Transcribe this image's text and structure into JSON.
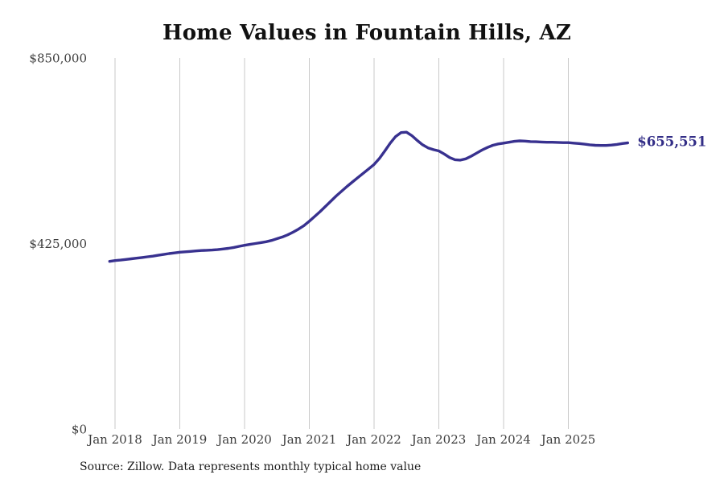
{
  "title": "Home Values in Fountain Hills, AZ",
  "source_note": "Source: Zillow. Data represents monthly typical home value",
  "latest_value_label": "$655,551",
  "colors": {
    "line": "#38318f",
    "grid": "#c9c9c9",
    "axis_text": "#3d3d3d",
    "title_text": "#111111",
    "end_label_text": "#332e87",
    "background": "#ffffff"
  },
  "chart_data": {
    "type": "line",
    "title": "Home Values in Fountain Hills, AZ",
    "xlabel": "",
    "ylabel": "",
    "x_start_month": "Dec 2017",
    "x_end_month": "Dec 2025",
    "x_offset_months": -1,
    "x_tick_labels": [
      "Jan 2018",
      "Jan 2019",
      "Jan 2020",
      "Jan 2021",
      "Jan 2022",
      "Jan 2023",
      "Jan 2024",
      "Jan 2025"
    ],
    "y_ticks": [
      0,
      425000,
      850000
    ],
    "y_tick_labels": [
      "$0",
      "$425,000",
      "$850,000"
    ],
    "ylim": [
      0,
      850000
    ],
    "grid": "vertical-only",
    "legend": "none",
    "end_value": 655551,
    "series": [
      {
        "name": "Typical home value",
        "values": [
          384000,
          386000,
          387000,
          388500,
          390000,
          391500,
          393000,
          394500,
          396000,
          398000,
          400000,
          402000,
          403500,
          405000,
          406000,
          407000,
          408000,
          409000,
          409500,
          410000,
          411000,
          412500,
          414000,
          416000,
          418500,
          421000,
          423000,
          425000,
          427000,
          429000,
          432000,
          436000,
          440000,
          445000,
          451000,
          458000,
          466000,
          476000,
          487000,
          498000,
          510000,
          522000,
          534000,
          545000,
          556000,
          566000,
          576000,
          586000,
          596000,
          606000,
          620000,
          637000,
          655000,
          670000,
          679000,
          680000,
          672000,
          661000,
          651000,
          644000,
          640000,
          637000,
          630000,
          622000,
          617000,
          616000,
          619000,
          625000,
          632000,
          639000,
          645000,
          650000,
          653000,
          655000,
          657000,
          659000,
          660000,
          659500,
          658500,
          658000,
          657500,
          657000,
          657000,
          656500,
          656000,
          656000,
          655000,
          654000,
          652500,
          651000,
          650000,
          649500,
          649500,
          650500,
          652000,
          654000,
          655551
        ]
      }
    ]
  }
}
